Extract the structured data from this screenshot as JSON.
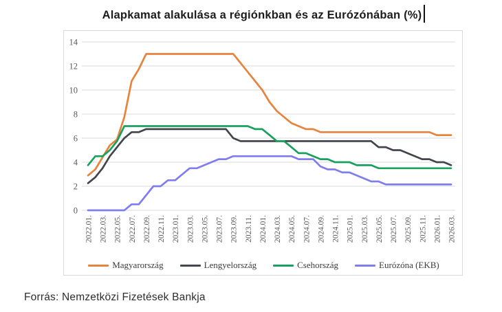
{
  "title": "Alapkamat alakulása a régiónkban és az Eurózónában (%)",
  "source_note": "Forrás: Nemzetközi Fizetések Bankja",
  "colors": {
    "grid": "#d9d9d9",
    "frame": "#d9d9d9",
    "axis_text": "#595959",
    "title_text": "#1c1c1c"
  },
  "chart_data": {
    "type": "line",
    "title": "Alapkamat alakulása a régiónkban és az Eurózónában (%)",
    "ylim": [
      0,
      14
    ],
    "yticks": [
      0,
      2,
      4,
      6,
      8,
      10,
      12,
      14
    ],
    "grid": true,
    "legend_position": "bottom",
    "x_monthly_range": "2022.01 - 2026.03",
    "x_tick_labels": [
      "2022.01.",
      "2022.03.",
      "2022.05.",
      "2022.07.",
      "2022.09.",
      "2022.11.",
      "2023.01.",
      "2023.03.",
      "2023.05.",
      "2023.07.",
      "2023.09.",
      "2023.11.",
      "2024.01.",
      "2024.03.",
      "2024.05.",
      "2024.07.",
      "2024.09.",
      "2024.11.",
      "2025.01.",
      "2025.03.",
      "2025.05.",
      "2025.07.",
      "2025.09.",
      "2025.11.",
      "2026.01.",
      "2026.03."
    ],
    "series": [
      {
        "name": "Magyarország",
        "color": "#e8833c",
        "values": [
          2.9,
          3.4,
          4.4,
          5.4,
          5.9,
          7.75,
          10.75,
          11.75,
          13,
          13,
          13,
          13,
          13,
          13,
          13,
          13,
          13,
          13,
          13,
          13,
          13,
          12.25,
          11.5,
          10.75,
          10,
          9,
          8.25,
          7.75,
          7.25,
          7,
          6.75,
          6.75,
          6.5,
          6.5,
          6.5,
          6.5,
          6.5,
          6.5,
          6.5,
          6.5,
          6.5,
          6.5,
          6.5,
          6.5,
          6.5,
          6.5,
          6.5,
          6.5,
          6.25,
          6.25,
          6.25
        ]
      },
      {
        "name": "Lengyelország",
        "color": "#42454c",
        "values": [
          2.25,
          2.75,
          3.5,
          4.5,
          5.25,
          6,
          6.5,
          6.5,
          6.75,
          6.75,
          6.75,
          6.75,
          6.75,
          6.75,
          6.75,
          6.75,
          6.75,
          6.75,
          6.75,
          6.75,
          6,
          5.75,
          5.75,
          5.75,
          5.75,
          5.75,
          5.75,
          5.75,
          5.75,
          5.75,
          5.75,
          5.75,
          5.75,
          5.75,
          5.75,
          5.75,
          5.75,
          5.75,
          5.75,
          5.75,
          5.25,
          5.25,
          5,
          5,
          4.75,
          4.5,
          4.25,
          4.25,
          4,
          4,
          3.75
        ]
      },
      {
        "name": "Csehország",
        "color": "#17a05e",
        "values": [
          3.75,
          4.5,
          4.5,
          5,
          5.75,
          7,
          7,
          7,
          7,
          7,
          7,
          7,
          7,
          7,
          7,
          7,
          7,
          7,
          7,
          7,
          7,
          7,
          7,
          6.75,
          6.75,
          6.25,
          5.75,
          5.75,
          5.25,
          4.75,
          4.75,
          4.5,
          4.25,
          4.25,
          4,
          4,
          4,
          3.75,
          3.75,
          3.75,
          3.5,
          3.5,
          3.5,
          3.5,
          3.5,
          3.5,
          3.5,
          3.5,
          3.5,
          3.5,
          3.5
        ]
      },
      {
        "name": "Eurózóna (EKB)",
        "color": "#7f7cef",
        "values": [
          0,
          0,
          0,
          0,
          0,
          0,
          0.5,
          0.5,
          1.25,
          2,
          2,
          2.5,
          2.5,
          3,
          3.5,
          3.5,
          3.75,
          4,
          4.25,
          4.25,
          4.5,
          4.5,
          4.5,
          4.5,
          4.5,
          4.5,
          4.5,
          4.5,
          4.5,
          4.25,
          4.25,
          4.25,
          3.65,
          3.4,
          3.4,
          3.15,
          3.15,
          2.9,
          2.65,
          2.4,
          2.4,
          2.15,
          2.15,
          2.15,
          2.15,
          2.15,
          2.15,
          2.15,
          2.15,
          2.15,
          2.15
        ]
      }
    ]
  }
}
